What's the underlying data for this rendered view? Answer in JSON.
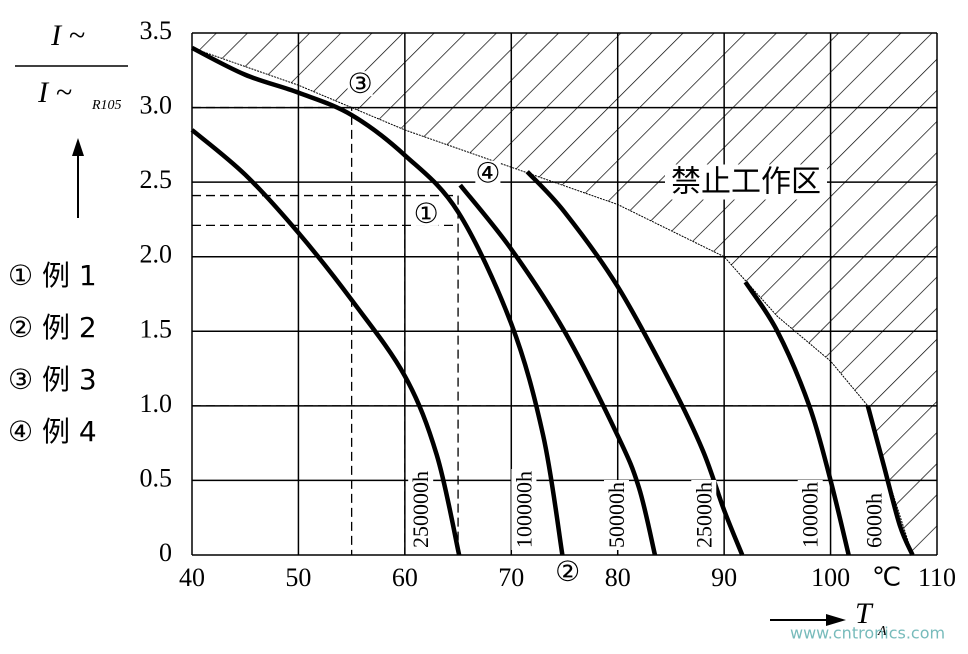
{
  "chart_data": {
    "type": "line",
    "y_label": {
      "numerator": "I ~",
      "denominator": "I ~",
      "subscript": "R105"
    },
    "x_label": {
      "main": "T",
      "subscript": "A"
    },
    "x_unit": "℃",
    "xlim": [
      40,
      110
    ],
    "xticks": [
      40,
      50,
      60,
      70,
      80,
      90,
      100,
      110
    ],
    "ylim": [
      0,
      3.5
    ],
    "yticks": [
      {
        "value": 0,
        "label": "0"
      },
      0.5,
      {
        "value": 1,
        "label": "1.0"
      },
      1.5,
      {
        "value": 2,
        "label": "2.0"
      },
      2.5,
      {
        "value": 3,
        "label": "3.0"
      },
      3.5
    ],
    "grid": true,
    "series": [
      {
        "name": "250000h",
        "color": "#000000",
        "x": [
          40,
          45,
          50,
          55,
          60,
          63,
          65.1
        ],
        "values": [
          2.85,
          2.55,
          2.16,
          1.71,
          1.2,
          0.67,
          0
        ]
      },
      {
        "name": "100000h",
        "color": "#000000",
        "x": [
          40,
          45,
          50,
          55,
          60,
          65,
          70,
          73,
          74.8
        ],
        "values": [
          3.4,
          3.22,
          3.1,
          2.95,
          2.68,
          2.3,
          1.55,
          0.8,
          0
        ]
      },
      {
        "name": "50000h",
        "color": "#000000",
        "x": [
          65.2,
          70,
          75,
          80,
          82,
          83.5
        ],
        "values": [
          2.48,
          2.05,
          1.5,
          0.8,
          0.45,
          0
        ]
      },
      {
        "name": "25000h",
        "color": "#000000",
        "x": [
          71.5,
          75,
          80,
          85,
          88,
          90,
          91.7
        ],
        "values": [
          2.57,
          2.3,
          1.8,
          1.15,
          0.7,
          0.3,
          0
        ]
      },
      {
        "name": "10000h",
        "color": "#000000",
        "x": [
          92,
          95,
          98,
          100,
          101.7
        ],
        "values": [
          1.83,
          1.5,
          1.0,
          0.5,
          0
        ]
      },
      {
        "name": "6000h",
        "color": "#000000",
        "x": [
          103.5,
          105,
          106.5,
          107.7
        ],
        "values": [
          1.0,
          0.6,
          0.2,
          0
        ]
      }
    ],
    "boundary": {
      "x": [
        40,
        50,
        60,
        70,
        80,
        90,
        95,
        100,
        103.5,
        105,
        107.7
      ],
      "values": [
        3.4,
        3.15,
        2.85,
        2.6,
        2.35,
        2.0,
        1.6,
        1.3,
        1.0,
        0.6,
        0
      ]
    },
    "forbidden_zone_label": "禁止工作区",
    "guides": [
      {
        "x": [
          40,
          55,
          55
        ],
        "values": [
          3.0,
          3.0,
          0
        ]
      },
      {
        "x": [
          40,
          65
        ],
        "values": [
          2.41,
          2.41
        ]
      },
      {
        "x": [
          40,
          65
        ],
        "values": [
          2.21,
          2.21
        ]
      },
      {
        "x": [
          60,
          60
        ],
        "values": [
          2.21,
          0
        ]
      },
      {
        "x": [
          65,
          65
        ],
        "values": [
          2.41,
          0
        ]
      },
      {
        "x": [
          40,
          103.5
        ],
        "values": [
          1.0,
          1.0
        ]
      }
    ],
    "annotations": [
      {
        "text": "③",
        "x": 55.8,
        "y": 3.15
      },
      {
        "text": "④",
        "x": 67.8,
        "y": 2.55
      },
      {
        "text": "①",
        "x": 62,
        "y": 2.28
      },
      {
        "text": "②",
        "x": 75.3,
        "y": -0.12
      }
    ],
    "notes": [
      "① 例 1",
      "② 例 2",
      "③ 例 3",
      "④ 例 4"
    ],
    "watermark": "www.cntronics.com"
  }
}
